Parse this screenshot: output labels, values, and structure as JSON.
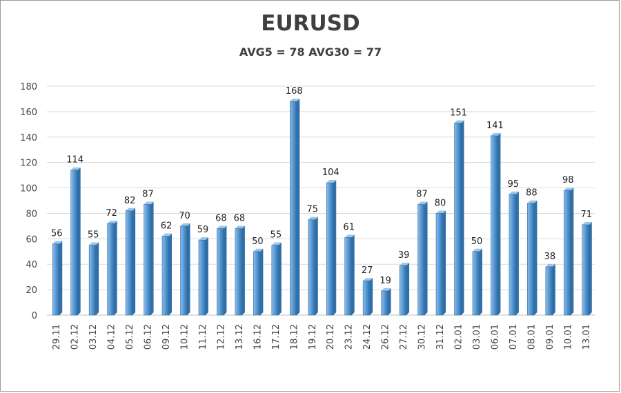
{
  "chart_data": {
    "type": "bar",
    "title": "EURUSD",
    "subtitle": "AVG5 = 78 AVG30 = 77",
    "categories": [
      "29.11",
      "02.12",
      "03.12",
      "04.12",
      "05.12",
      "06.12",
      "09.12",
      "10.12",
      "11.12",
      "12.12",
      "13.12",
      "16.12",
      "17.12",
      "18.12",
      "19.12",
      "20.12",
      "23.12",
      "24.12",
      "26.12",
      "27.12",
      "30.12",
      "31.12",
      "02.01",
      "03.01",
      "06.01",
      "07.01",
      "08.01",
      "09.01",
      "10.01",
      "13.01"
    ],
    "values": [
      56,
      114,
      55,
      72,
      82,
      87,
      62,
      70,
      59,
      68,
      68,
      50,
      55,
      168,
      75,
      104,
      61,
      27,
      19,
      39,
      87,
      80,
      151,
      50,
      141,
      95,
      88,
      38,
      98,
      71
    ],
    "ylim": [
      0,
      180
    ],
    "yticks": [
      0,
      20,
      40,
      60,
      80,
      100,
      120,
      140,
      160,
      180
    ],
    "grid": true,
    "data_labels": true,
    "legend": "none",
    "colors": {
      "bar": "#5b9bd5",
      "bar_dark": "#2e6fa8",
      "bar_light": "#9cc5ea"
    }
  }
}
